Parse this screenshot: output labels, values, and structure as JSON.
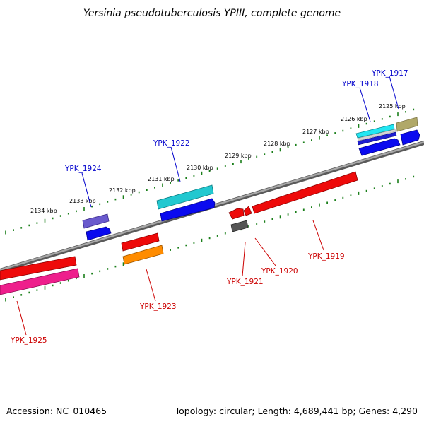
{
  "title": "Yersinia pseudotuberculosis YPIII, complete genome",
  "footer": {
    "accession": "Accession: NC_010465",
    "summary": "Topology: circular; Length: 4,689,441 bp; Genes: 4,290"
  },
  "colors": {
    "forward_label": "#0000cc",
    "reverse_label": "#cc0000",
    "backbone": "#808080",
    "tick_track": "#1a7f1a"
  },
  "ruler": {
    "unit": "kbp",
    "ticks": [
      {
        "kbp": 2125,
        "label": "2125 kbp"
      },
      {
        "kbp": 2126,
        "label": "2126 kbp"
      },
      {
        "kbp": 2127,
        "label": "2127 kbp"
      },
      {
        "kbp": 2128,
        "label": "2128 kbp"
      },
      {
        "kbp": 2129,
        "label": "2129 kbp"
      },
      {
        "kbp": 2130,
        "label": "2130 kbp"
      },
      {
        "kbp": 2131,
        "label": "2131 kbp"
      },
      {
        "kbp": 2132,
        "label": "2132 kbp"
      },
      {
        "kbp": 2133,
        "label": "2133 kbp"
      },
      {
        "kbp": 2134,
        "label": "2134 kbp"
      }
    ]
  },
  "genes": [
    {
      "id": "g1917",
      "label": "YPK_1917",
      "strand": "forward",
      "label_color": "#0000cc"
    },
    {
      "id": "g1918",
      "label": "YPK_1918",
      "strand": "forward",
      "label_color": "#0000cc"
    },
    {
      "id": "g1919",
      "label": "YPK_1919",
      "strand": "reverse",
      "label_color": "#cc0000"
    },
    {
      "id": "g1920",
      "label": "YPK_1920",
      "strand": "reverse",
      "label_color": "#cc0000"
    },
    {
      "id": "g1921",
      "label": "YPK_1921",
      "strand": "reverse",
      "label_color": "#cc0000"
    },
    {
      "id": "g1922",
      "label": "YPK_1922",
      "strand": "forward",
      "label_color": "#0000cc"
    },
    {
      "id": "g1923",
      "label": "YPK_1923",
      "strand": "reverse",
      "label_color": "#cc0000"
    },
    {
      "id": "g1924",
      "label": "YPK_1924",
      "strand": "forward",
      "label_color": "#0000cc"
    },
    {
      "id": "g1925",
      "label": "YPK_1925",
      "strand": "reverse",
      "label_color": "#cc0000"
    }
  ]
}
